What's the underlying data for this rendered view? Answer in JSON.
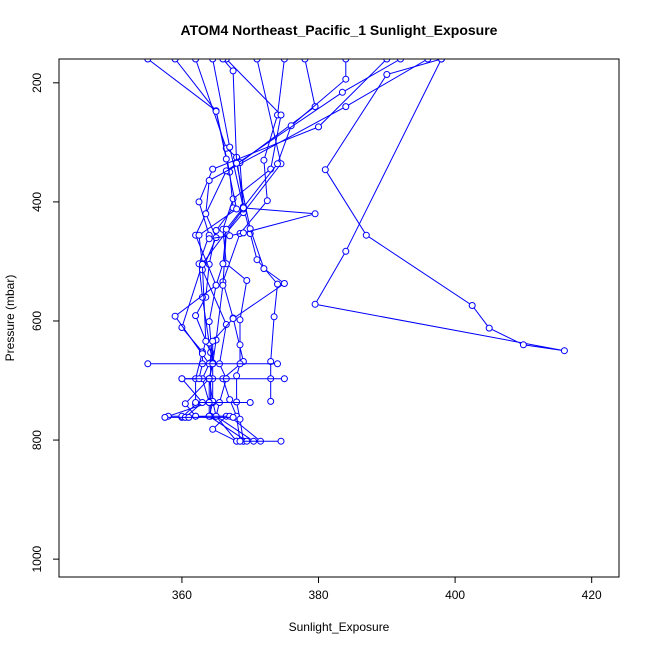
{
  "chart_data": {
    "type": "line",
    "title": "ATOM4 Northeast_Pacific_1 Sunlight_Exposure",
    "xlabel": "Sunlight_Exposure",
    "ylabel": "Pressure (mbar)",
    "xlim": [
      342,
      424
    ],
    "ylim": [
      1030,
      160
    ],
    "y_reversed": true,
    "x_ticks": [
      360,
      380,
      400,
      420
    ],
    "y_ticks": [
      200,
      400,
      600,
      800,
      1000
    ],
    "grid": false,
    "color": "#0000ff",
    "marker": "open-circle",
    "series": [
      {
        "points": [
          [
            355.0,
            160
          ],
          [
            365.0,
            247
          ],
          [
            367.0,
            350
          ],
          [
            367.5,
            410
          ],
          [
            365.0,
            448
          ],
          [
            364.0,
            505
          ],
          [
            363.5,
            560
          ],
          [
            362.0,
            591
          ],
          [
            364.2,
            653
          ],
          [
            364.2,
            670
          ],
          [
            364.2,
            697
          ],
          [
            364.2,
            735
          ],
          [
            364.2,
            760
          ]
        ]
      },
      {
        "points": [
          [
            362.0,
            160
          ],
          [
            366.5,
            310
          ],
          [
            368.0,
            325
          ],
          [
            369.0,
            408
          ],
          [
            370.0,
            453
          ],
          [
            371.0,
            497
          ],
          [
            374.0,
            538
          ],
          [
            373.5,
            593
          ],
          [
            373.0,
            668
          ],
          [
            373.0,
            697
          ],
          [
            373.0,
            735
          ]
        ]
      },
      {
        "points": [
          [
            375.0,
            160
          ],
          [
            374.0,
            254
          ],
          [
            372.0,
            330
          ],
          [
            372.5,
            398
          ],
          [
            368.5,
            453
          ],
          [
            366.0,
            534
          ],
          [
            367.5,
            595
          ],
          [
            369.0,
            668
          ],
          [
            366.0,
            697
          ],
          [
            367.0,
            732
          ],
          [
            368.0,
            760
          ],
          [
            368.5,
            802
          ]
        ]
      },
      {
        "points": [
          [
            366.5,
            160
          ],
          [
            374.5,
            254
          ],
          [
            373.0,
            345
          ],
          [
            367.5,
            395
          ],
          [
            366.0,
            446
          ],
          [
            366.5,
            504
          ],
          [
            369.5,
            532
          ],
          [
            368.5,
            598
          ],
          [
            368.5,
            640
          ],
          [
            368.5,
            672
          ],
          [
            368.0,
            692
          ],
          [
            368.0,
            736
          ],
          [
            368.5,
            765
          ],
          [
            369.0,
            802
          ]
        ]
      },
      {
        "points": [
          [
            371.0,
            160
          ],
          [
            374.5,
            336
          ],
          [
            369.0,
            418
          ],
          [
            366.5,
            452
          ],
          [
            366.0,
            540
          ],
          [
            365.0,
            632
          ],
          [
            364.5,
            672
          ],
          [
            364.5,
            697
          ],
          [
            364.5,
            737
          ],
          [
            364.0,
            760
          ],
          [
            366.5,
            760
          ],
          [
            364.5,
            782
          ],
          [
            368.0,
            802
          ]
        ]
      },
      {
        "points": [
          [
            378.0,
            160
          ],
          [
            379.5,
            240
          ],
          [
            368.5,
            334
          ],
          [
            369.0,
            412
          ],
          [
            363.0,
            504
          ],
          [
            360.0,
            611
          ],
          [
            363.0,
            652
          ],
          [
            362.0,
            697
          ],
          [
            362.0,
            740
          ],
          [
            360.0,
            762
          ],
          [
            364.0,
            760
          ]
        ]
      },
      {
        "points": [
          [
            384.0,
            160
          ],
          [
            384.0,
            194
          ],
          [
            376.0,
            272
          ],
          [
            374.0,
            336
          ],
          [
            366.5,
            446
          ],
          [
            366.0,
            504
          ],
          [
            365.0,
            540
          ],
          [
            364.0,
            601
          ],
          [
            364.5,
            670
          ],
          [
            364.0,
            697
          ],
          [
            364.5,
            735
          ],
          [
            365.0,
            760
          ],
          [
            368.0,
            802
          ],
          [
            369.0,
            802
          ]
        ]
      },
      {
        "points": [
          [
            390.0,
            160
          ],
          [
            380.0,
            274
          ],
          [
            364.5,
            345
          ],
          [
            362.5,
            400
          ],
          [
            364.0,
            456
          ],
          [
            362.5,
            504
          ],
          [
            363.0,
            560
          ],
          [
            364.0,
            637
          ],
          [
            364.5,
            672
          ],
          [
            364.0,
            697
          ],
          [
            364.0,
            737
          ],
          [
            364.0,
            760
          ],
          [
            369.5,
            802
          ]
        ]
      },
      {
        "points": [
          [
            392.0,
            160
          ],
          [
            383.5,
            216
          ],
          [
            366.5,
            348
          ],
          [
            362.0,
            456
          ],
          [
            365.0,
            540
          ],
          [
            359.0,
            592
          ],
          [
            364.0,
            672
          ],
          [
            363.0,
            697
          ],
          [
            364.0,
            737
          ],
          [
            358.0,
            760
          ],
          [
            360.0,
            760
          ],
          [
            362.0,
            760
          ]
        ]
      },
      {
        "points": [
          [
            396.0,
            160
          ],
          [
            384.0,
            240
          ],
          [
            364.0,
            364
          ],
          [
            363.5,
            420
          ],
          [
            365.0,
            460
          ],
          [
            363.0,
            514
          ],
          [
            366.5,
            606
          ],
          [
            365.5,
            672
          ],
          [
            366.5,
            697
          ],
          [
            365.5,
            737
          ],
          [
            365.0,
            760
          ],
          [
            370.5,
            802
          ]
        ]
      },
      {
        "points": [
          [
            398.0,
            160
          ],
          [
            390.0,
            186
          ],
          [
            381.0,
            346
          ],
          [
            387.0,
            456
          ],
          [
            402.5,
            574
          ],
          [
            405.0,
            612
          ],
          [
            410.0,
            640
          ],
          [
            416.0,
            650
          ],
          [
            379.5,
            572
          ],
          [
            384.0,
            483
          ],
          [
            398.0,
            160
          ]
        ]
      },
      {
        "points": [
          [
            366.0,
            160
          ],
          [
            367.5,
            180
          ],
          [
            368.0,
            335
          ],
          [
            370.0,
            445
          ],
          [
            372.0,
            512
          ],
          [
            375.0,
            537
          ],
          [
            367.5,
            596
          ],
          [
            364.5,
            634
          ],
          [
            364.5,
            672
          ],
          [
            364.0,
            697
          ],
          [
            360.5,
            739
          ],
          [
            362.0,
            760
          ],
          [
            367.0,
            760
          ],
          [
            371.5,
            802
          ]
        ]
      },
      {
        "points": [
          [
            364.5,
            160
          ],
          [
            367.0,
            308
          ],
          [
            369.0,
            410
          ],
          [
            379.5,
            420
          ],
          [
            369.0,
            452
          ],
          [
            367.0,
            457
          ],
          [
            364.0,
            462
          ]
        ]
      },
      {
        "points": [
          [
            359.0,
            160
          ],
          [
            365.0,
            248
          ],
          [
            366.5,
            328
          ],
          [
            368.0,
            412
          ],
          [
            362.5,
            456
          ],
          [
            363.0,
            505
          ],
          [
            363.5,
            634
          ],
          [
            363.0,
            655
          ],
          [
            363.0,
            672
          ],
          [
            362.5,
            697
          ],
          [
            360.0,
            697
          ],
          [
            363.0,
            737
          ],
          [
            360.5,
            762
          ],
          [
            361.0,
            762
          ]
        ]
      },
      {
        "points": [
          [
            355.0,
            672
          ],
          [
            374.0,
            672
          ]
        ]
      },
      {
        "points": [
          [
            360.0,
            697
          ],
          [
            375.0,
            697
          ]
        ]
      },
      {
        "points": [
          [
            362.0,
            737
          ],
          [
            370.0,
            737
          ]
        ]
      },
      {
        "points": [
          [
            357.5,
            762
          ],
          [
            367.5,
            762
          ]
        ]
      },
      {
        "points": [
          [
            368.5,
            802
          ],
          [
            374.5,
            802
          ]
        ]
      }
    ]
  }
}
